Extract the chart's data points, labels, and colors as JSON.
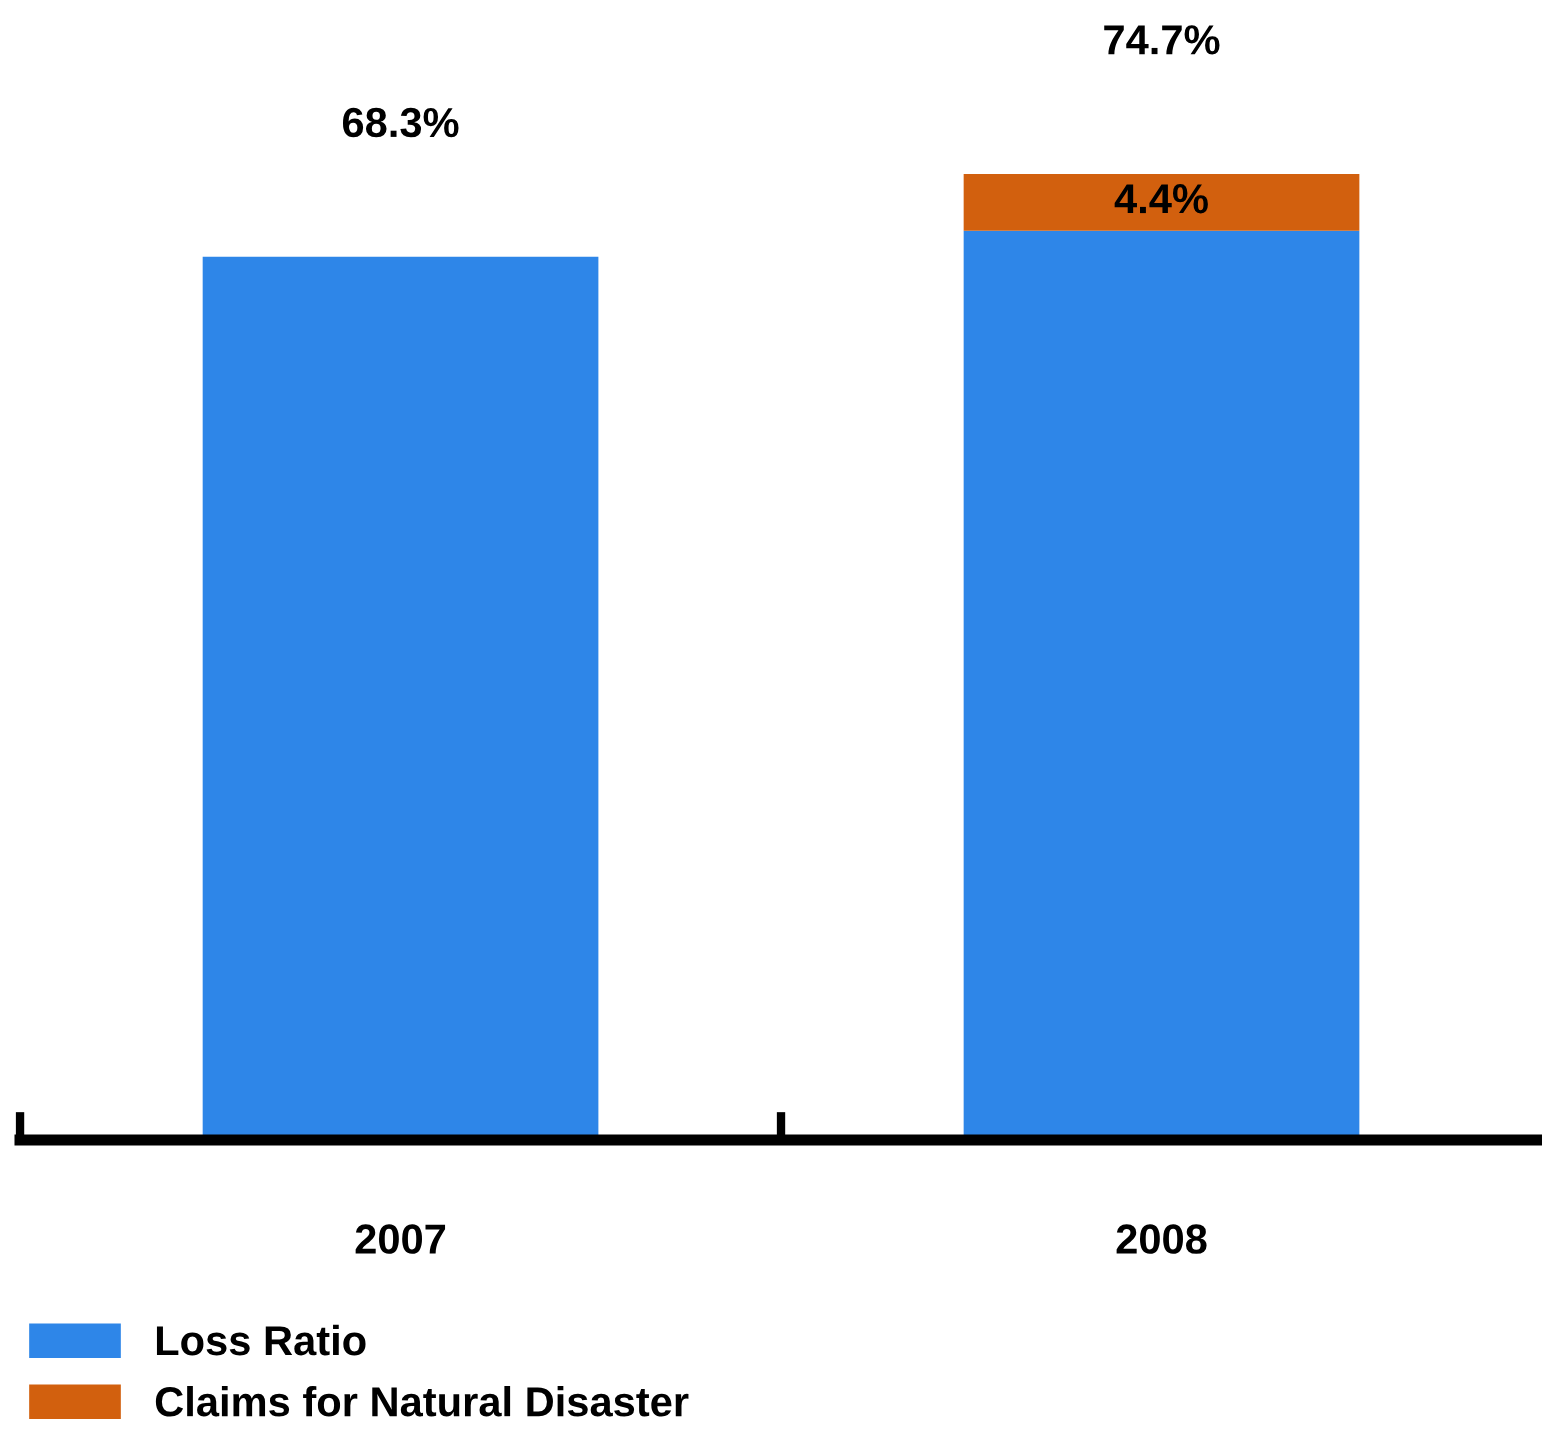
{
  "chart_data": {
    "type": "bar",
    "stacked": true,
    "categories": [
      "2007",
      "2008"
    ],
    "series": [
      {
        "name": "Loss Ratio",
        "color": "#2e86e8",
        "values": [
          68.3,
          70.3
        ]
      },
      {
        "name": "Claims for Natural Disaster",
        "color": "#d2600e",
        "values": [
          0,
          4.4
        ],
        "value_labels": [
          null,
          "4.4%"
        ]
      }
    ],
    "totals": [
      "68.3%",
      "74.7%"
    ],
    "tick_labels": "x",
    "grid": false,
    "legend": "bottom left"
  }
}
